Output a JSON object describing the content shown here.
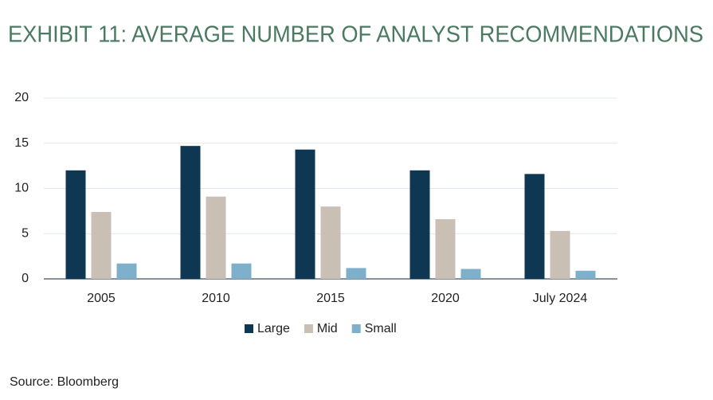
{
  "chart_data": {
    "type": "bar",
    "title": "EXHIBIT 11: AVERAGE NUMBER OF ANALYST RECOMMENDATIONS",
    "source": "Source: Bloomberg",
    "categories": [
      "2005",
      "2010",
      "2015",
      "2020",
      "July 2024"
    ],
    "series": [
      {
        "name": "Large",
        "color": "#0d3752",
        "values": [
          12,
          14.7,
          14.3,
          12,
          11.6
        ]
      },
      {
        "name": "Mid",
        "color": "#c9bfb4",
        "values": [
          7.4,
          9.1,
          8,
          6.6,
          5.3
        ]
      },
      {
        "name": "Small",
        "color": "#7fb0cb",
        "values": [
          1.7,
          1.7,
          1.2,
          1.1,
          0.9
        ]
      }
    ],
    "ylim": [
      0,
      20
    ],
    "yticks": [
      0,
      5,
      10,
      15,
      20
    ],
    "grid": true
  }
}
